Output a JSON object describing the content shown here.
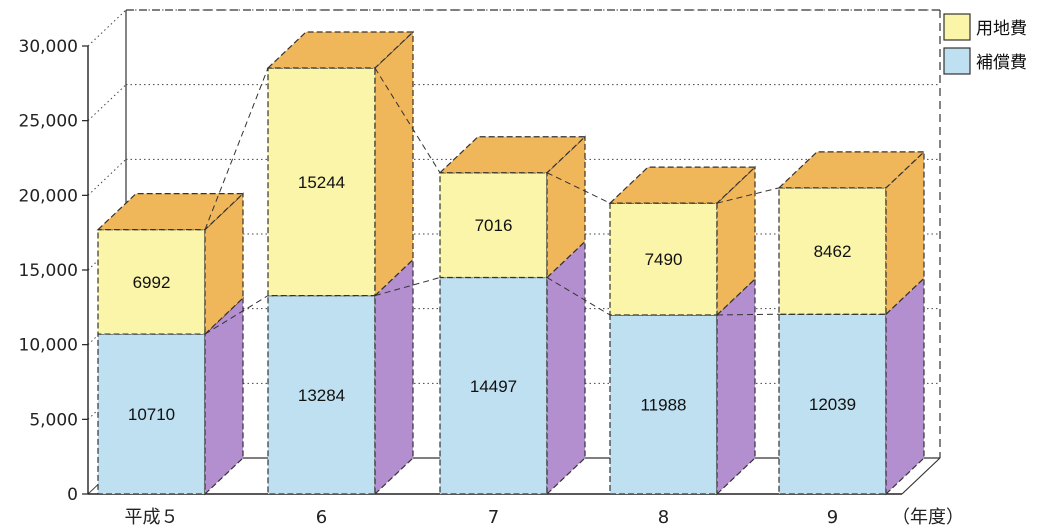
{
  "chart_data": {
    "type": "bar",
    "stacked": true,
    "three_d": true,
    "categories": [
      "平成５",
      "6",
      "7",
      "8",
      "9"
    ],
    "x_unit": "（年度）",
    "series": [
      {
        "name": "補償費",
        "values": [
          10710,
          13284,
          14497,
          11988,
          12039
        ],
        "color": "#bfe0f0",
        "side_color": "#b48fd0"
      },
      {
        "name": "用地費",
        "values": [
          6992,
          15244,
          7016,
          7490,
          8462
        ],
        "color": "#fbf5aa",
        "side_color": "#f0b65a"
      }
    ],
    "ylim": [
      0,
      30000
    ],
    "yticks": [
      "0",
      "5,000",
      "10,000",
      "15,000",
      "20,000",
      "25,000",
      "30,000"
    ],
    "grid": true,
    "legend_position": "top-right"
  }
}
